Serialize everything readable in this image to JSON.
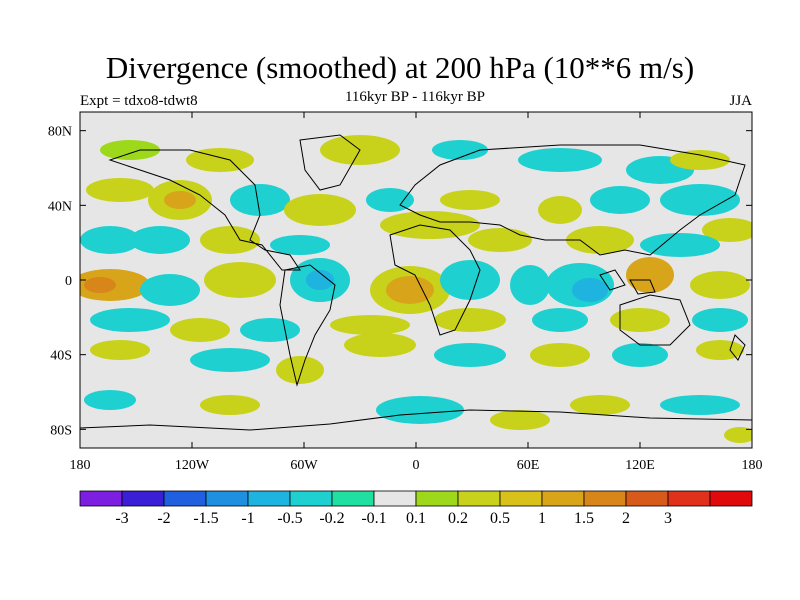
{
  "title": "Divergence (smoothed) at 200 hPa (10**6 m/s)",
  "experiment_label": "Expt = tdxo8-tdwt8",
  "period_label": "116kyr BP - 116kyr BP",
  "season_label": "JJA",
  "map": {
    "projection": "cylindrical-equidistant",
    "lon_range": [
      -180,
      180
    ],
    "lat_range": [
      -90,
      90
    ],
    "background_color": "#e6e6e6",
    "coastline_color": "#000000"
  },
  "axes": {
    "lat_ticks": [
      {
        "value": 80,
        "label": "80N"
      },
      {
        "value": 40,
        "label": "40N"
      },
      {
        "value": 0,
        "label": "0"
      },
      {
        "value": -40,
        "label": "40S"
      },
      {
        "value": -80,
        "label": "80S"
      }
    ],
    "lon_ticks": [
      {
        "value": -180,
        "label": "180"
      },
      {
        "value": -120,
        "label": "120W"
      },
      {
        "value": -60,
        "label": "60W"
      },
      {
        "value": 0,
        "label": "0"
      },
      {
        "value": 60,
        "label": "60E"
      },
      {
        "value": 120,
        "label": "120E"
      },
      {
        "value": 180,
        "label": "180"
      }
    ]
  },
  "colorbar": {
    "colors": [
      "#7d1fe0",
      "#3a1fd6",
      "#1f5fe0",
      "#1f8fe0",
      "#1fb3e0",
      "#1fd0d0",
      "#1fe0a0",
      "#e6e6e6",
      "#9ed81a",
      "#c8d21a",
      "#d8c21a",
      "#d8a51a",
      "#d8851a",
      "#d85a1a",
      "#e0321a",
      "#e00a0a"
    ],
    "labels": [
      "-3",
      "-2",
      "-1.5",
      "-1",
      "-0.5",
      "-0.2",
      "-0.1",
      "0.1",
      "0.2",
      "0.5",
      "1",
      "1.5",
      "2",
      "3"
    ]
  }
}
